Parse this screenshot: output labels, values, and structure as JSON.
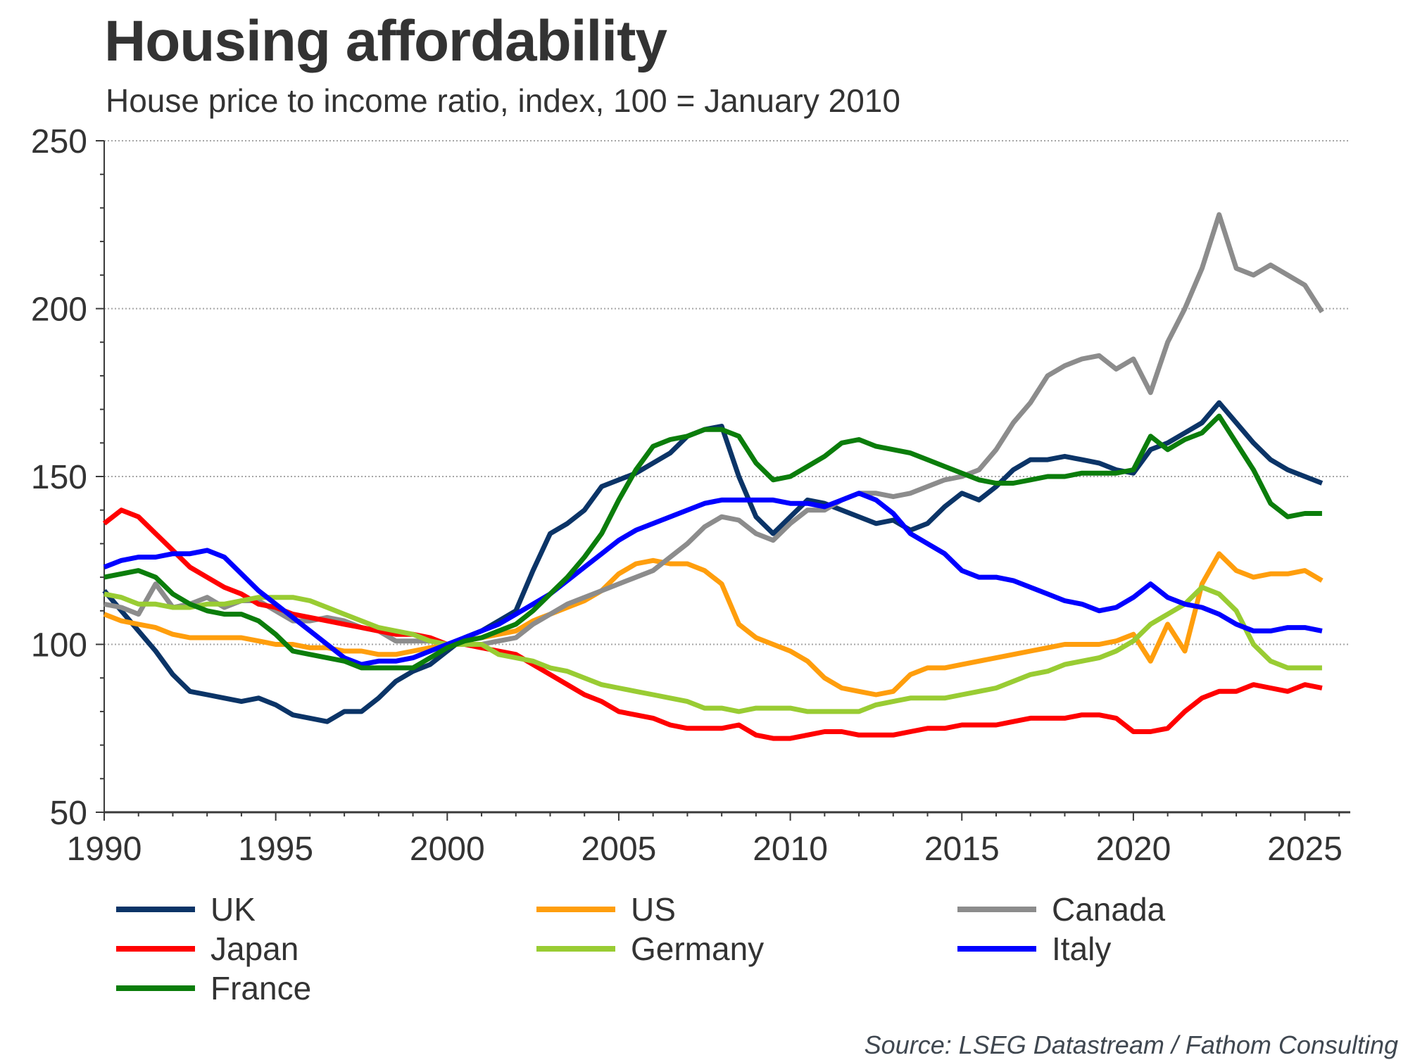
{
  "title": "Housing affordability",
  "subtitle": "House price to income ratio, index, 100 = January 2010",
  "source": "Source: LSEG Datastream / Fathom Consulting",
  "chart_data": {
    "type": "line",
    "title": "Housing affordability",
    "subtitle": "House price to income ratio, index, 100 = January 2010",
    "xlabel": "",
    "ylabel": "",
    "xlim": [
      1990,
      2026.7
    ],
    "ylim": [
      50,
      250
    ],
    "yticks": [
      50,
      100,
      150,
      200,
      250
    ],
    "xticks": [
      1990,
      1995,
      2000,
      2005,
      2010,
      2015,
      2020,
      2025
    ],
    "ytick_labels": [
      "50",
      "100",
      "150",
      "200",
      "250"
    ],
    "xtick_labels": [
      "1990",
      "1995",
      "2000",
      "2005",
      "2010",
      "2015",
      "2020",
      "2025"
    ],
    "grid": "horizontal dotted at 100, 150, 200, 250",
    "legend_position": "bottom",
    "x": [
      1990,
      1990.5,
      1991,
      1991.5,
      1992,
      1992.5,
      1993,
      1993.5,
      1994,
      1994.5,
      1995,
      1995.5,
      1996,
      1996.5,
      1997,
      1997.5,
      1998,
      1998.5,
      1999,
      1999.5,
      2000,
      2000.5,
      2001,
      2001.5,
      2002,
      2002.5,
      2003,
      2003.5,
      2004,
      2004.5,
      2005,
      2005.5,
      2006,
      2006.5,
      2007,
      2007.5,
      2008,
      2008.5,
      2009,
      2009.5,
      2010,
      2010.5,
      2011,
      2011.5,
      2012,
      2012.5,
      2013,
      2013.5,
      2014,
      2014.5,
      2015,
      2015.5,
      2016,
      2016.5,
      2017,
      2017.5,
      2018,
      2018.5,
      2019,
      2019.5,
      2020,
      2020.5,
      2021,
      2021.5,
      2022,
      2022.5,
      2023,
      2023.5,
      2024,
      2024.5,
      2025,
      2025.5
    ],
    "series": [
      {
        "name": "UK",
        "color": "#0b3467",
        "values": [
          116,
          110,
          104,
          98,
          91,
          86,
          85,
          84,
          83,
          84,
          82,
          79,
          78,
          77,
          80,
          80,
          84,
          89,
          92,
          94,
          98,
          102,
          104,
          107,
          110,
          122,
          133,
          136,
          140,
          147,
          149,
          151,
          154,
          157,
          162,
          164,
          165,
          150,
          138,
          133,
          138,
          143,
          142,
          140,
          138,
          136,
          137,
          134,
          136,
          141,
          145,
          143,
          147,
          152,
          155,
          155,
          156,
          155,
          154,
          152,
          151,
          158,
          160,
          163,
          166,
          172,
          166,
          160,
          155,
          152,
          150,
          148
        ]
      },
      {
        "name": "US",
        "color": "#ff9e0d",
        "values": [
          109,
          107,
          106,
          105,
          103,
          102,
          102,
          102,
          102,
          101,
          100,
          100,
          99,
          99,
          98,
          98,
          97,
          97,
          98,
          99,
          100,
          101,
          102,
          103,
          104,
          107,
          109,
          111,
          113,
          116,
          121,
          124,
          125,
          124,
          124,
          122,
          118,
          106,
          102,
          100,
          98,
          95,
          90,
          87,
          86,
          85,
          86,
          91,
          93,
          93,
          94,
          95,
          96,
          97,
          98,
          99,
          100,
          100,
          100,
          101,
          103,
          95,
          106,
          98,
          118,
          127,
          122,
          120,
          121,
          121,
          122,
          119
        ]
      },
      {
        "name": "Canada",
        "color": "#8c8c8c",
        "values": [
          112,
          111,
          109,
          118,
          111,
          112,
          114,
          111,
          113,
          113,
          110,
          107,
          107,
          108,
          107,
          105,
          104,
          101,
          101,
          101,
          100,
          100,
          100,
          101,
          102,
          106,
          109,
          112,
          114,
          116,
          118,
          120,
          122,
          126,
          130,
          135,
          138,
          137,
          133,
          131,
          136,
          140,
          140,
          143,
          145,
          145,
          144,
          145,
          147,
          149,
          150,
          152,
          158,
          166,
          172,
          180,
          183,
          185,
          186,
          182,
          185,
          175,
          190,
          200,
          212,
          228,
          212,
          210,
          213,
          210,
          207,
          199
        ]
      },
      {
        "name": "Japan",
        "color": "#ff0000",
        "values": [
          136,
          140,
          138,
          133,
          128,
          123,
          120,
          117,
          115,
          112,
          111,
          109,
          108,
          107,
          106,
          105,
          104,
          103,
          103,
          102,
          100,
          100,
          99,
          98,
          97,
          94,
          91,
          88,
          85,
          83,
          80,
          79,
          78,
          76,
          75,
          75,
          75,
          76,
          73,
          72,
          72,
          73,
          74,
          74,
          73,
          73,
          73,
          74,
          75,
          75,
          76,
          76,
          76,
          77,
          78,
          78,
          78,
          79,
          79,
          78,
          74,
          74,
          75,
          80,
          84,
          86,
          86,
          88,
          87,
          86,
          88,
          87
        ]
      },
      {
        "name": "Germany",
        "color": "#99cc33",
        "values": [
          115,
          114,
          112,
          112,
          111,
          111,
          112,
          112,
          113,
          114,
          114,
          114,
          113,
          111,
          109,
          107,
          105,
          104,
          103,
          101,
          100,
          100,
          100,
          97,
          96,
          95,
          93,
          92,
          90,
          88,
          87,
          86,
          85,
          84,
          83,
          81,
          81,
          80,
          81,
          81,
          81,
          80,
          80,
          80,
          80,
          82,
          83,
          84,
          84,
          84,
          85,
          86,
          87,
          89,
          91,
          92,
          94,
          95,
          96,
          98,
          101,
          106,
          109,
          112,
          117,
          115,
          110,
          100,
          95,
          93,
          93,
          93
        ]
      },
      {
        "name": "Italy",
        "color": "#0000ff",
        "values": [
          123,
          125,
          126,
          126,
          127,
          127,
          128,
          126,
          121,
          116,
          112,
          108,
          104,
          100,
          96,
          94,
          95,
          95,
          96,
          98,
          100,
          102,
          104,
          106,
          109,
          112,
          115,
          119,
          123,
          127,
          131,
          134,
          136,
          138,
          140,
          142,
          143,
          143,
          143,
          143,
          142,
          142,
          141,
          143,
          145,
          143,
          139,
          133,
          130,
          127,
          122,
          120,
          120,
          119,
          117,
          115,
          113,
          112,
          110,
          111,
          114,
          118,
          114,
          112,
          111,
          109,
          106,
          104,
          104,
          105,
          105,
          104
        ]
      },
      {
        "name": "France",
        "color": "#0b7d0b",
        "values": [
          120,
          121,
          122,
          120,
          115,
          112,
          110,
          109,
          109,
          107,
          103,
          98,
          97,
          96,
          95,
          93,
          93,
          93,
          93,
          96,
          99,
          101,
          102,
          104,
          106,
          110,
          115,
          120,
          126,
          133,
          143,
          152,
          159,
          161,
          162,
          164,
          164,
          162,
          154,
          149,
          150,
          153,
          156,
          160,
          161,
          159,
          158,
          157,
          155,
          153,
          151,
          149,
          148,
          148,
          149,
          150,
          150,
          151,
          151,
          151,
          152,
          162,
          158,
          161,
          163,
          168,
          160,
          152,
          142,
          138,
          139,
          139
        ]
      }
    ]
  },
  "legend": [
    {
      "label": "UK"
    },
    {
      "label": "US"
    },
    {
      "label": "Canada"
    },
    {
      "label": "Japan"
    },
    {
      "label": "Germany"
    },
    {
      "label": "Italy"
    },
    {
      "label": "France"
    }
  ]
}
